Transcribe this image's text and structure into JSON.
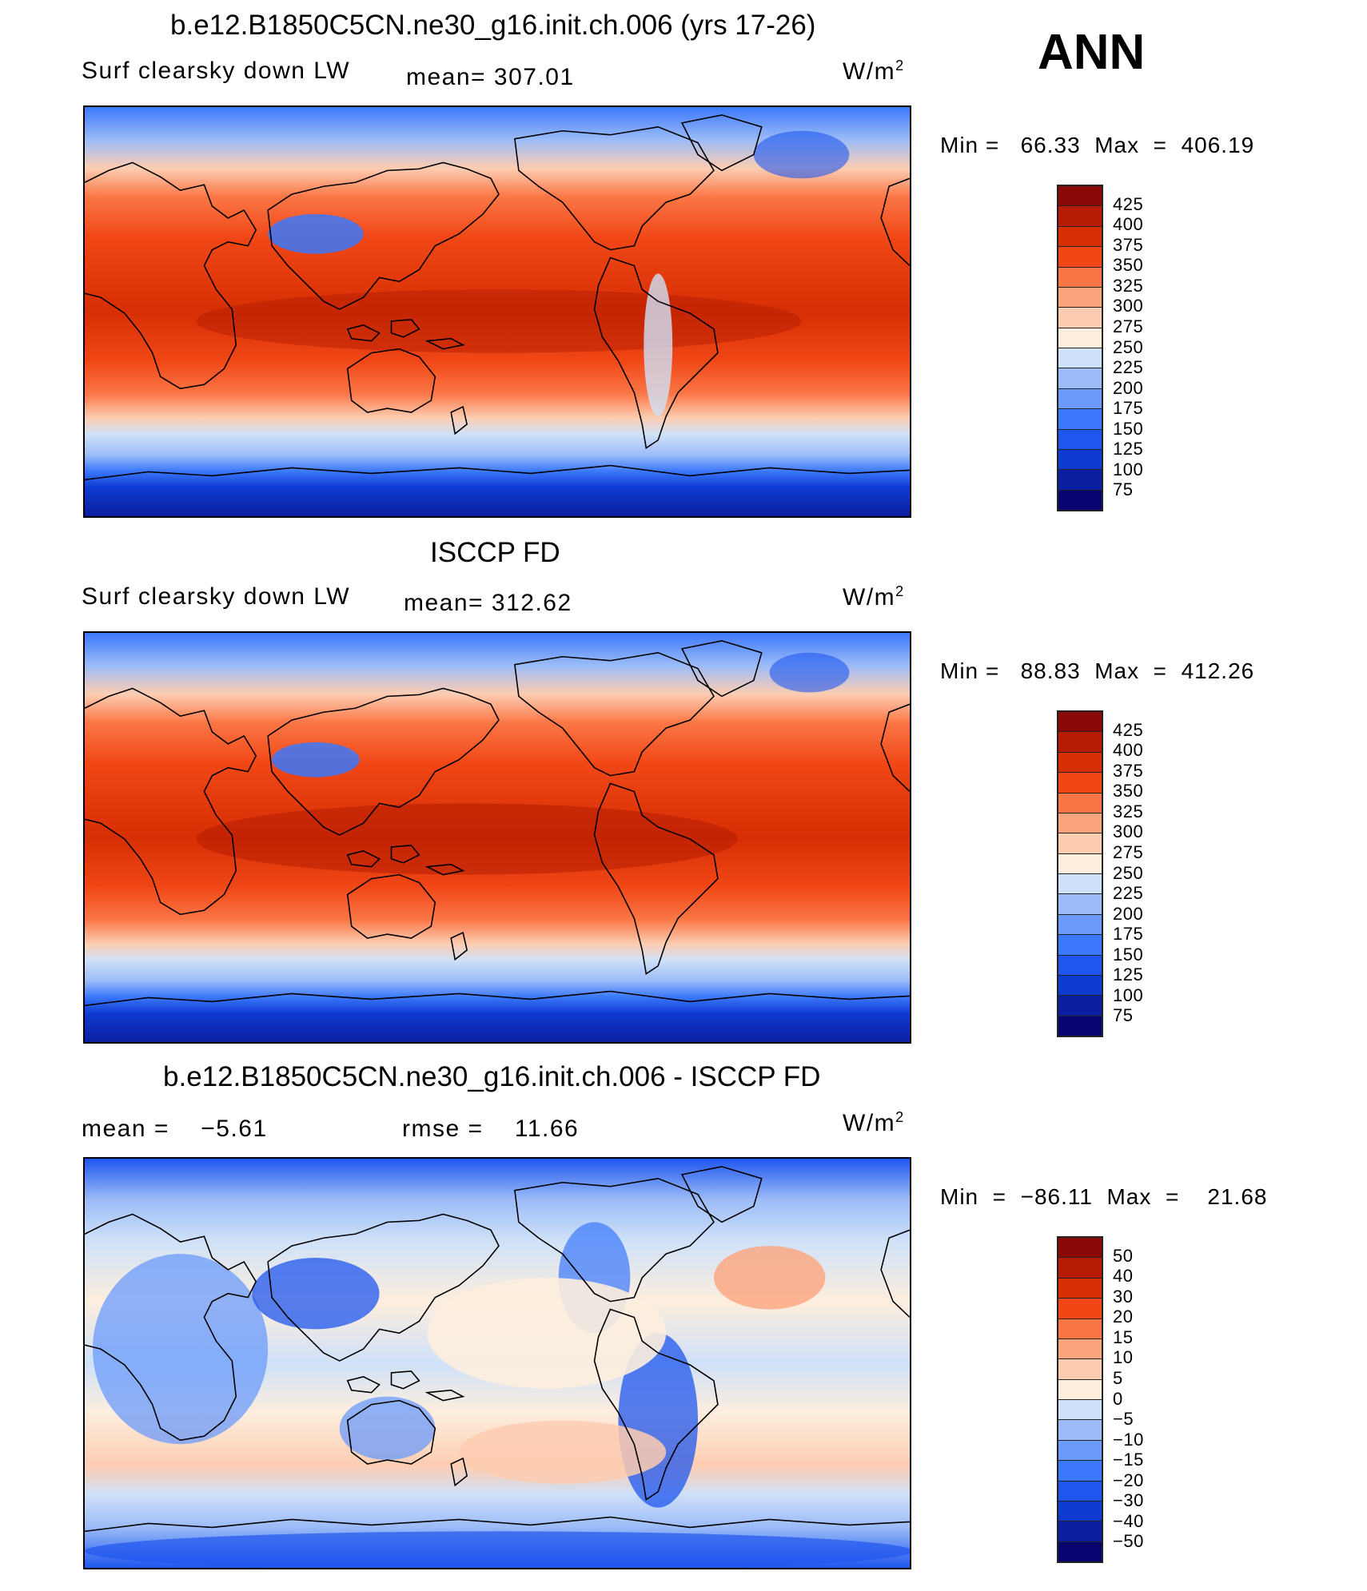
{
  "header": {
    "season": "ANN"
  },
  "colors": {
    "temp_scale": [
      "#08036e",
      "#0a1fa0",
      "#0f3bd1",
      "#1f56ee",
      "#3b78fb",
      "#6b9bfb",
      "#9cbcf8",
      "#cfe1f8",
      "#fdeede",
      "#fdcdb2",
      "#fca47d",
      "#fb7645",
      "#f14717",
      "#d62f03",
      "#b51c03",
      "#8a0806"
    ],
    "diff_scale": [
      "#08036e",
      "#0a1fa0",
      "#0f3bd1",
      "#1f56ee",
      "#3b78fb",
      "#6b9bfb",
      "#9cbcf8",
      "#cfe1f8",
      "#fdeede",
      "#fdcdb2",
      "#fca47d",
      "#fb7645",
      "#f14717",
      "#d62f03",
      "#b51c03",
      "#8a0806"
    ]
  },
  "panels": [
    {
      "title": "b.e12.B1850C5CN.ne30_g16.init.ch.006 (yrs 17-26)",
      "left_label": "Surf clearsky down LW",
      "center_label": "mean= 307.01",
      "units_base": "W/m",
      "units_exp": "2",
      "stats": "Min =   66.33  Max  =  406.19",
      "colorbar_labels": [
        "425",
        "400",
        "375",
        "350",
        "325",
        "300",
        "275",
        "250",
        "225",
        "200",
        "175",
        "150",
        "125",
        "100",
        "75"
      ]
    },
    {
      "title": "ISCCP FD",
      "left_label": "Surf clearsky down LW",
      "center_label": "mean= 312.62",
      "units_base": "W/m",
      "units_exp": "2",
      "stats": "Min =   88.83  Max  =  412.26",
      "colorbar_labels": [
        "425",
        "400",
        "375",
        "350",
        "325",
        "300",
        "275",
        "250",
        "225",
        "200",
        "175",
        "150",
        "125",
        "100",
        "75"
      ]
    },
    {
      "title": "b.e12.B1850C5CN.ne30_g16.init.ch.006 - ISCCP FD",
      "left_label": "mean =    −5.61",
      "center_label": "rmse =    11.66",
      "units_base": "W/m",
      "units_exp": "2",
      "stats": "Min  =  −86.11  Max  =    21.68",
      "colorbar_labels": [
        "50",
        "40",
        "30",
        "20",
        "15",
        "10",
        "5",
        "0",
        "−5",
        "−10",
        "−15",
        "−20",
        "−30",
        "−40",
        "−50"
      ]
    }
  ]
}
